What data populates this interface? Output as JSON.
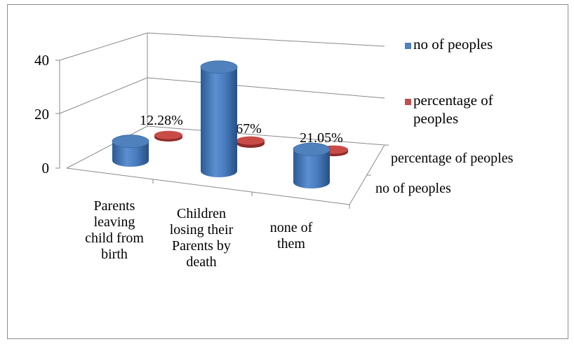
{
  "chart_data": {
    "type": "bar",
    "style": "3d-cylinder",
    "categories": [
      [
        "Parents",
        "leaving",
        "child from",
        "birth"
      ],
      [
        "Children",
        "losing their",
        "Parents by",
        "death"
      ],
      [
        "none of",
        "them"
      ]
    ],
    "series": [
      {
        "name": "no of peoples",
        "color": "#4f81bd",
        "values": [
          7,
          38,
          12
        ]
      },
      {
        "name": "percentage of peoples",
        "color": "#c0504d",
        "values": [
          0.1228,
          0.6667,
          0.2105
        ],
        "data_labels": [
          "12.28%",
          "66.67%",
          "21.05%"
        ]
      }
    ],
    "y_ticks": [
      "0",
      "20",
      "40"
    ],
    "ylim": [
      0,
      40
    ],
    "depth_labels": [
      "percentage of peoples",
      "no of peoples"
    ],
    "legend": {
      "position": "right",
      "entries": [
        {
          "lines": [
            "no of peoples"
          ],
          "color": "#4f81bd"
        },
        {
          "lines": [
            "percentage of",
            "peoples"
          ],
          "color": "#c0504d"
        }
      ]
    },
    "grid": true,
    "title": "",
    "xlabel": "",
    "ylabel": ""
  }
}
